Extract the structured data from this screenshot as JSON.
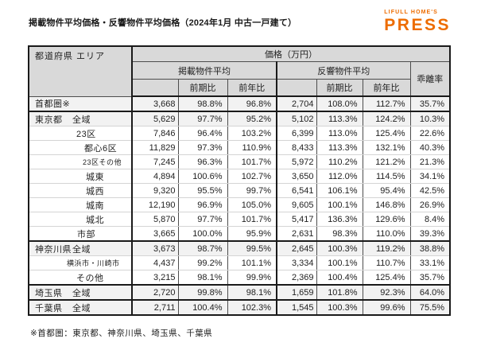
{
  "page": {
    "title": "掲載物件平均価格・反響物件平均価格（2024年1月 中古一戸建て）",
    "footnote": "※首都圏：東京都、神奈川県、埼玉県、千葉県"
  },
  "logo": {
    "top": "LIFULL HOME'S",
    "main": "PRESS",
    "color": "#ed6c00"
  },
  "table": {
    "header": {
      "area": "都道府県 エリア",
      "price_group": "価格（万円）",
      "listed_group": "掲載物件平均",
      "response_group": "反響物件平均",
      "deviation": "乖離率",
      "qoq": "前期比",
      "yoy": "前年比"
    },
    "columns": [
      {
        "key": "listed-average"
      },
      {
        "key": "listed-qoq"
      },
      {
        "key": "listed-yoy"
      },
      {
        "key": "response-average"
      },
      {
        "key": "response-qoq"
      },
      {
        "key": "response-yoy"
      },
      {
        "key": "deviation-rate"
      }
    ],
    "rows": [
      {
        "pref": "首都圏※",
        "area": "",
        "indent": 0,
        "small": false,
        "shaded": true,
        "group_end": true,
        "values": [
          "3,668",
          "98.8%",
          "96.8%",
          "2,704",
          "108.0%",
          "112.7%",
          "35.7%"
        ]
      },
      {
        "pref": "東京都",
        "area": "全域",
        "indent": 0,
        "small": false,
        "shaded": true,
        "group_end": false,
        "values": [
          "5,629",
          "97.7%",
          "95.2%",
          "5,102",
          "113.3%",
          "124.2%",
          "10.3%"
        ]
      },
      {
        "pref": "",
        "area": "23区",
        "indent": 56,
        "small": false,
        "shaded": false,
        "group_end": false,
        "values": [
          "7,846",
          "96.4%",
          "103.2%",
          "6,399",
          "113.0%",
          "125.4%",
          "22.6%"
        ]
      },
      {
        "pref": "",
        "area": "都心6区",
        "indent": 66,
        "small": false,
        "shaded": false,
        "group_end": false,
        "values": [
          "11,829",
          "97.3%",
          "110.9%",
          "8,433",
          "113.3%",
          "132.1%",
          "40.3%"
        ]
      },
      {
        "pref": "",
        "area": "23区その他",
        "indent": 64,
        "small": true,
        "shaded": false,
        "group_end": false,
        "values": [
          "7,245",
          "96.3%",
          "101.7%",
          "5,972",
          "110.2%",
          "121.2%",
          "21.3%"
        ]
      },
      {
        "pref": "",
        "area": "城東",
        "indent": 68,
        "small": false,
        "shaded": false,
        "group_end": false,
        "values": [
          "4,894",
          "100.6%",
          "102.7%",
          "3,650",
          "112.0%",
          "114.5%",
          "34.1%"
        ]
      },
      {
        "pref": "",
        "area": "城西",
        "indent": 68,
        "small": false,
        "shaded": false,
        "group_end": false,
        "values": [
          "9,320",
          "95.5%",
          "99.7%",
          "6,541",
          "106.1%",
          "95.4%",
          "42.5%"
        ]
      },
      {
        "pref": "",
        "area": "城南",
        "indent": 68,
        "small": false,
        "shaded": false,
        "group_end": false,
        "values": [
          "12,190",
          "96.9%",
          "105.0%",
          "9,605",
          "100.1%",
          "146.8%",
          "26.9%"
        ]
      },
      {
        "pref": "",
        "area": "城北",
        "indent": 68,
        "small": false,
        "shaded": false,
        "group_end": false,
        "values": [
          "5,870",
          "97.7%",
          "101.7%",
          "5,417",
          "136.3%",
          "129.6%",
          "8.4%"
        ]
      },
      {
        "pref": "",
        "area": "市部",
        "indent": 57,
        "small": false,
        "shaded": false,
        "group_end": true,
        "values": [
          "3,665",
          "100.0%",
          "95.9%",
          "2,631",
          "98.3%",
          "110.0%",
          "39.3%"
        ]
      },
      {
        "pref": "神奈川県",
        "area": "全域",
        "indent": 0,
        "small": false,
        "shaded": true,
        "group_end": false,
        "values": [
          "3,673",
          "98.7%",
          "99.5%",
          "2,645",
          "100.3%",
          "119.2%",
          "38.8%"
        ]
      },
      {
        "pref": "",
        "area": "横浜市・川崎市",
        "indent": 44,
        "small": true,
        "shaded": false,
        "group_end": false,
        "values": [
          "4,437",
          "99.2%",
          "101.1%",
          "3,334",
          "100.1%",
          "110.7%",
          "33.1%"
        ]
      },
      {
        "pref": "",
        "area": "その他",
        "indent": 56,
        "small": false,
        "shaded": false,
        "group_end": true,
        "values": [
          "3,215",
          "98.1%",
          "99.9%",
          "2,369",
          "100.4%",
          "125.4%",
          "35.7%"
        ]
      },
      {
        "pref": "埼玉県",
        "area": "全域",
        "indent": 0,
        "small": false,
        "shaded": true,
        "group_end": true,
        "values": [
          "2,720",
          "99.8%",
          "98.1%",
          "1,659",
          "101.8%",
          "92.3%",
          "64.0%"
        ]
      },
      {
        "pref": "千葉県",
        "area": "全域",
        "indent": 0,
        "small": false,
        "shaded": true,
        "group_end": false,
        "values": [
          "2,711",
          "100.4%",
          "102.3%",
          "1,545",
          "100.3%",
          "99.6%",
          "75.5%"
        ]
      }
    ]
  }
}
